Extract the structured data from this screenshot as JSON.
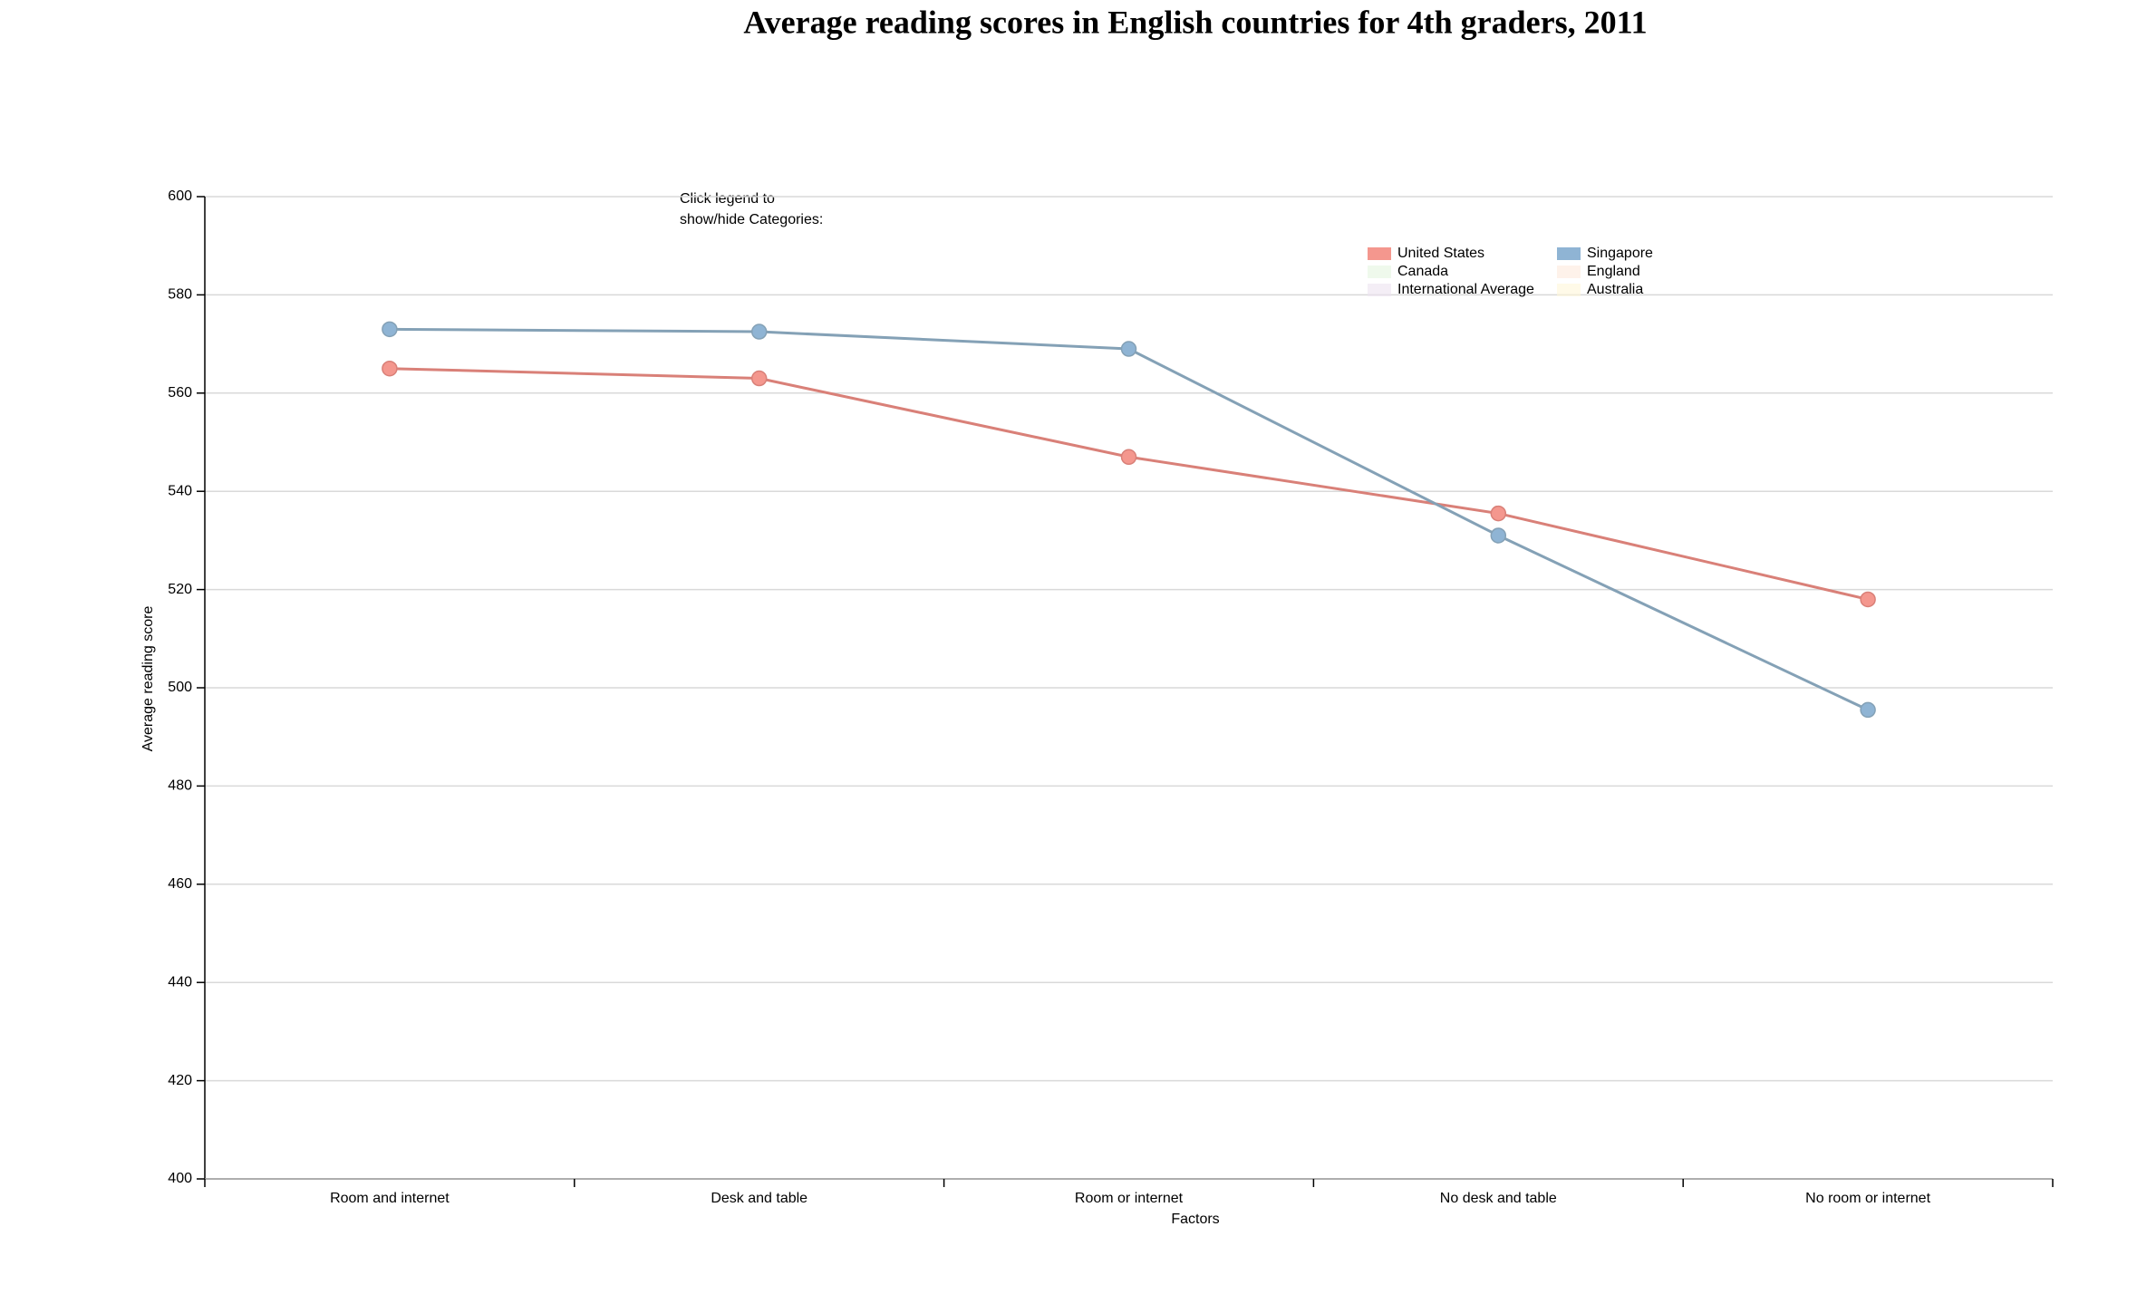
{
  "chart_data": {
    "type": "line",
    "title": "Average reading scores in English countries for 4th graders, 2011",
    "x_label": "Factors",
    "y_label": "Average reading score",
    "annotation": [
      "Click legend to",
      "show/hide Categories:"
    ],
    "categories": [
      "Room and internet",
      "Desk and table",
      "Room or internet",
      "No desk and table",
      "No room or internet"
    ],
    "series": [
      {
        "name": "United States",
        "color": "#f4978e",
        "line_color": "#d98078",
        "values": [
          565,
          563,
          547,
          535.5,
          518
        ]
      },
      {
        "name": "Singapore",
        "color": "#8fb4d4",
        "line_color": "#84a1b6",
        "values": [
          573,
          572.5,
          569,
          531,
          495.5
        ]
      },
      {
        "name": "Canada",
        "color": "#e5f5e0",
        "hidden": true,
        "values": [
          null,
          null,
          null,
          null,
          null
        ]
      },
      {
        "name": "England",
        "color": "#fde9dc",
        "hidden": true,
        "values": [
          null,
          null,
          null,
          null,
          null
        ]
      },
      {
        "name": "International Average",
        "color": "#ece2f0",
        "hidden": true,
        "values": [
          null,
          null,
          null,
          null,
          null
        ]
      },
      {
        "name": "Australia",
        "color": "#fff6d9",
        "hidden": true,
        "values": [
          null,
          null,
          null,
          null,
          null
        ]
      }
    ],
    "ylim": [
      400,
      600
    ],
    "yticks": [
      400,
      420,
      440,
      460,
      480,
      500,
      520,
      540,
      560,
      580,
      600
    ],
    "grid": true
  }
}
